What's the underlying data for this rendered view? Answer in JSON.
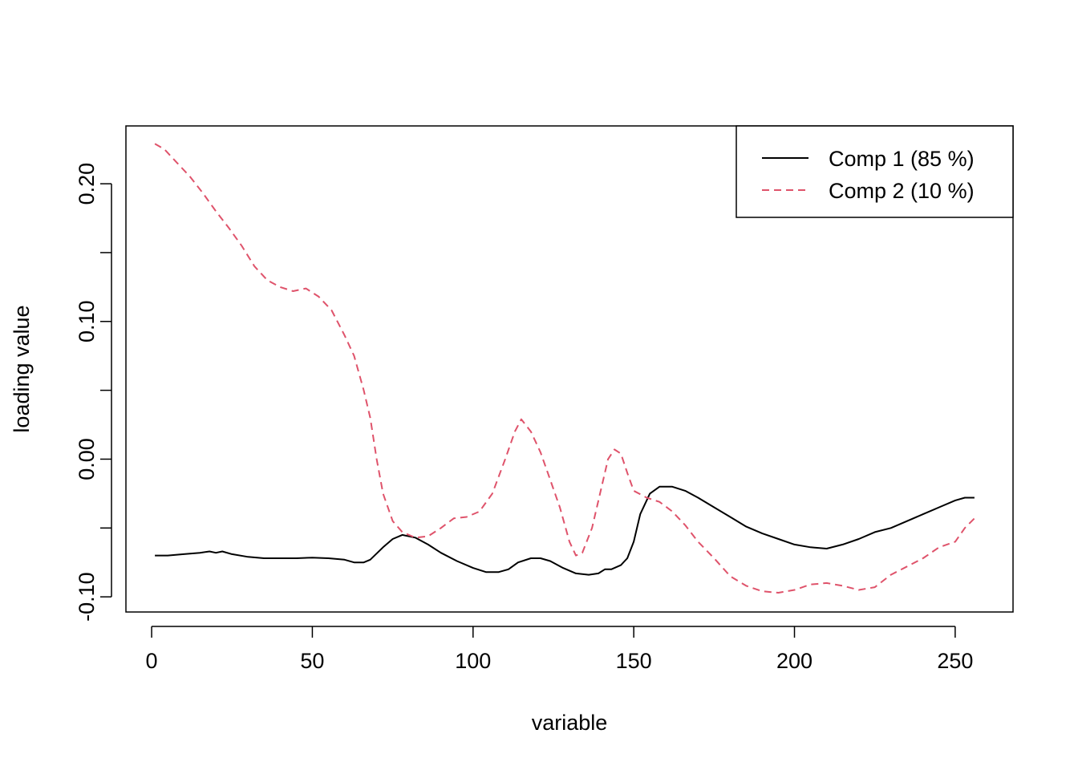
{
  "chart_data": {
    "type": "line",
    "xlabel": "variable",
    "ylabel": "loading value",
    "xlim": [
      -8,
      268
    ],
    "ylim": [
      -0.111,
      0.242
    ],
    "x_ticks": [
      0,
      50,
      100,
      150,
      200,
      250
    ],
    "x_tick_labels": [
      "0",
      "50",
      "100",
      "150",
      "200",
      "250"
    ],
    "y_ticks": [
      -0.1,
      -0.05,
      0.0,
      0.05,
      0.1,
      0.15,
      0.2
    ],
    "y_tick_labels": [
      "-0.10",
      "",
      "0.00",
      "",
      "0.10",
      "",
      "0.20"
    ],
    "grid": false,
    "legend": {
      "position": "top-right",
      "entries": [
        "Comp 1 (85 %)",
        "Comp 2 (10 %)"
      ]
    },
    "series": [
      {
        "name": "Comp 1 (85 %)",
        "color": "#000000",
        "dash": "solid",
        "points": [
          [
            1,
            -0.07
          ],
          [
            5,
            -0.07
          ],
          [
            10,
            -0.069
          ],
          [
            15,
            -0.068
          ],
          [
            18,
            -0.067
          ],
          [
            20,
            -0.068
          ],
          [
            22,
            -0.067
          ],
          [
            25,
            -0.069
          ],
          [
            30,
            -0.071
          ],
          [
            35,
            -0.072
          ],
          [
            40,
            -0.072
          ],
          [
            45,
            -0.072
          ],
          [
            50,
            -0.0715
          ],
          [
            55,
            -0.072
          ],
          [
            60,
            -0.073
          ],
          [
            63,
            -0.075
          ],
          [
            66,
            -0.075
          ],
          [
            68,
            -0.073
          ],
          [
            72,
            -0.064
          ],
          [
            75,
            -0.058
          ],
          [
            78,
            -0.055
          ],
          [
            82,
            -0.057
          ],
          [
            86,
            -0.062
          ],
          [
            90,
            -0.068
          ],
          [
            95,
            -0.074
          ],
          [
            100,
            -0.079
          ],
          [
            104,
            -0.082
          ],
          [
            108,
            -0.082
          ],
          [
            111,
            -0.08
          ],
          [
            114,
            -0.075
          ],
          [
            118,
            -0.072
          ],
          [
            121,
            -0.072
          ],
          [
            124,
            -0.074
          ],
          [
            128,
            -0.079
          ],
          [
            132,
            -0.083
          ],
          [
            136,
            -0.084
          ],
          [
            139,
            -0.083
          ],
          [
            141,
            -0.08
          ],
          [
            143,
            -0.08
          ],
          [
            146,
            -0.077
          ],
          [
            148,
            -0.072
          ],
          [
            150,
            -0.06
          ],
          [
            152,
            -0.04
          ],
          [
            155,
            -0.025
          ],
          [
            158,
            -0.02
          ],
          [
            162,
            -0.02
          ],
          [
            166,
            -0.023
          ],
          [
            170,
            -0.028
          ],
          [
            175,
            -0.035
          ],
          [
            180,
            -0.042
          ],
          [
            185,
            -0.049
          ],
          [
            190,
            -0.054
          ],
          [
            195,
            -0.058
          ],
          [
            200,
            -0.062
          ],
          [
            205,
            -0.064
          ],
          [
            210,
            -0.065
          ],
          [
            215,
            -0.062
          ],
          [
            220,
            -0.058
          ],
          [
            225,
            -0.053
          ],
          [
            230,
            -0.05
          ],
          [
            235,
            -0.045
          ],
          [
            240,
            -0.04
          ],
          [
            245,
            -0.035
          ],
          [
            250,
            -0.03
          ],
          [
            253,
            -0.028
          ],
          [
            256,
            -0.028
          ]
        ]
      },
      {
        "name": "Comp 2 (10 %)",
        "color": "#DF536B",
        "dash": "dashed",
        "points": [
          [
            1,
            0.229
          ],
          [
            4,
            0.225
          ],
          [
            8,
            0.215
          ],
          [
            12,
            0.205
          ],
          [
            16,
            0.193
          ],
          [
            20,
            0.18
          ],
          [
            24,
            0.168
          ],
          [
            28,
            0.155
          ],
          [
            32,
            0.14
          ],
          [
            36,
            0.13
          ],
          [
            40,
            0.125
          ],
          [
            44,
            0.122
          ],
          [
            48,
            0.124
          ],
          [
            52,
            0.118
          ],
          [
            56,
            0.108
          ],
          [
            60,
            0.09
          ],
          [
            63,
            0.075
          ],
          [
            66,
            0.05
          ],
          [
            68,
            0.03
          ],
          [
            70,
            0.0
          ],
          [
            72,
            -0.025
          ],
          [
            75,
            -0.045
          ],
          [
            78,
            -0.053
          ],
          [
            82,
            -0.057
          ],
          [
            86,
            -0.056
          ],
          [
            90,
            -0.05
          ],
          [
            94,
            -0.043
          ],
          [
            98,
            -0.042
          ],
          [
            102,
            -0.038
          ],
          [
            106,
            -0.025
          ],
          [
            110,
            0.0
          ],
          [
            113,
            0.02
          ],
          [
            115,
            0.029
          ],
          [
            118,
            0.02
          ],
          [
            121,
            0.005
          ],
          [
            124,
            -0.015
          ],
          [
            127,
            -0.035
          ],
          [
            130,
            -0.06
          ],
          [
            132,
            -0.07
          ],
          [
            134,
            -0.068
          ],
          [
            137,
            -0.05
          ],
          [
            140,
            -0.02
          ],
          [
            142,
            0.0
          ],
          [
            144,
            0.007
          ],
          [
            146,
            0.004
          ],
          [
            148,
            -0.01
          ],
          [
            150,
            -0.023
          ],
          [
            154,
            -0.028
          ],
          [
            158,
            -0.031
          ],
          [
            162,
            -0.038
          ],
          [
            166,
            -0.048
          ],
          [
            170,
            -0.06
          ],
          [
            175,
            -0.072
          ],
          [
            180,
            -0.085
          ],
          [
            185,
            -0.092
          ],
          [
            190,
            -0.096
          ],
          [
            195,
            -0.097
          ],
          [
            200,
            -0.095
          ],
          [
            205,
            -0.091
          ],
          [
            210,
            -0.09
          ],
          [
            215,
            -0.092
          ],
          [
            220,
            -0.095
          ],
          [
            225,
            -0.093
          ],
          [
            230,
            -0.084
          ],
          [
            235,
            -0.078
          ],
          [
            240,
            -0.072
          ],
          [
            245,
            -0.064
          ],
          [
            250,
            -0.06
          ],
          [
            253,
            -0.05
          ],
          [
            256,
            -0.043
          ]
        ]
      }
    ]
  }
}
